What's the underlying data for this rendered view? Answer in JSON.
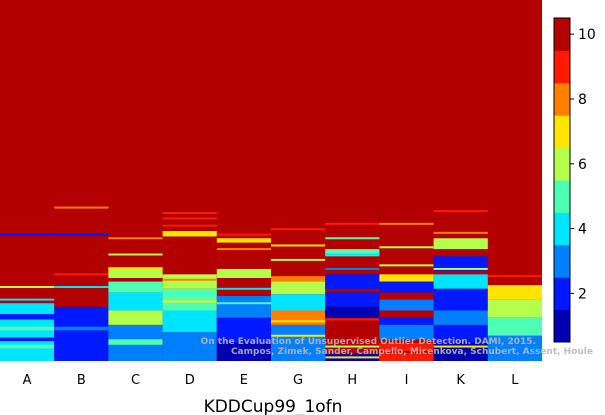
{
  "chart_data": {
    "type": "heatmap",
    "title": "",
    "xlabel": "KDDCup99_1ofn",
    "ylabel": "",
    "categories": [
      "A",
      "B",
      "C",
      "D",
      "E",
      "G",
      "H",
      "I",
      "K",
      "L"
    ],
    "colorbar": {
      "min": 0.5,
      "max": 10.5,
      "ticks": [
        2,
        4,
        6,
        8,
        10
      ],
      "colormap": "jet",
      "levels": 10
    },
    "background_value": 10.5,
    "notes_scale": "vertical position is a fraction (0 = top, 1 = bottom) of the plotted ranking",
    "columns": [
      {
        "name": "A",
        "bands": [
          {
            "y0": 0.84,
            "y1": 1.0,
            "v": 3.5
          },
          {
            "y0": 0.87,
            "y1": 0.885,
            "v": 2.0
          },
          {
            "y0": 0.905,
            "y1": 0.915,
            "v": 5.0
          },
          {
            "y0": 0.935,
            "y1": 0.945,
            "v": 1.5
          },
          {
            "y0": 0.955,
            "y1": 0.965,
            "v": 4.5
          }
        ],
        "lines": [
          {
            "y": 0.795,
            "v": 5.5
          },
          {
            "y": 0.83,
            "v": 4.0
          },
          {
            "y": 0.65,
            "v": 1.5
          }
        ]
      },
      {
        "name": "B",
        "bands": [
          {
            "y0": 0.85,
            "y1": 1.0,
            "v": 2.2
          },
          {
            "y0": 0.905,
            "y1": 0.915,
            "v": 2.8
          }
        ],
        "lines": [
          {
            "y": 0.575,
            "v": 8.0
          },
          {
            "y": 0.76,
            "v": 9.0
          },
          {
            "y": 0.795,
            "v": 4.0
          },
          {
            "y": 0.65,
            "v": 1.5
          }
        ]
      },
      {
        "name": "C",
        "bands": [
          {
            "y0": 0.74,
            "y1": 0.77,
            "v": 6.0
          },
          {
            "y0": 0.78,
            "y1": 0.81,
            "v": 4.5
          },
          {
            "y0": 0.81,
            "y1": 0.86,
            "v": 3.5
          },
          {
            "y0": 0.86,
            "y1": 0.9,
            "v": 5.5
          },
          {
            "y0": 0.9,
            "y1": 1.0,
            "v": 3.0
          },
          {
            "y0": 0.94,
            "y1": 0.955,
            "v": 4.5
          }
        ],
        "lines": [
          {
            "y": 0.66,
            "v": 8.0
          },
          {
            "y": 0.705,
            "v": 6.0
          },
          {
            "y": 0.745,
            "v": 7.0
          }
        ]
      },
      {
        "name": "D",
        "bands": [
          {
            "y0": 0.64,
            "y1": 0.655,
            "v": 7.2
          },
          {
            "y0": 0.76,
            "y1": 0.8,
            "v": 6.0
          },
          {
            "y0": 0.8,
            "y1": 0.86,
            "v": 5.0
          },
          {
            "y0": 0.86,
            "y1": 0.92,
            "v": 4.0
          },
          {
            "y0": 0.92,
            "y1": 1.0,
            "v": 3.0
          }
        ],
        "lines": [
          {
            "y": 0.59,
            "v": 8.5
          },
          {
            "y": 0.605,
            "v": 9.0
          },
          {
            "y": 0.625,
            "v": 9.0
          },
          {
            "y": 0.775,
            "v": 7.5
          },
          {
            "y": 0.835,
            "v": 6.5
          }
        ]
      },
      {
        "name": "E",
        "bands": [
          {
            "y0": 0.66,
            "y1": 0.672,
            "v": 7.0
          },
          {
            "y0": 0.745,
            "y1": 0.77,
            "v": 6.0
          },
          {
            "y0": 0.82,
            "y1": 0.88,
            "v": 2.5
          },
          {
            "y0": 0.88,
            "y1": 0.95,
            "v": 1.8
          },
          {
            "y0": 0.95,
            "y1": 1.0,
            "v": 1.0
          }
        ],
        "lines": [
          {
            "y": 0.65,
            "v": 8.5
          },
          {
            "y": 0.69,
            "v": 7.5
          },
          {
            "y": 0.8,
            "v": 4.0
          },
          {
            "y": 0.84,
            "v": 5.0
          }
        ]
      },
      {
        "name": "G",
        "bands": [
          {
            "y0": 0.765,
            "y1": 0.78,
            "v": 8.0
          },
          {
            "y0": 0.78,
            "y1": 0.815,
            "v": 5.5
          },
          {
            "y0": 0.815,
            "y1": 0.86,
            "v": 3.5
          },
          {
            "y0": 0.86,
            "y1": 0.9,
            "v": 8.2
          },
          {
            "y0": 0.9,
            "y1": 0.96,
            "v": 2.5
          },
          {
            "y0": 0.96,
            "y1": 1.0,
            "v": 3.2
          }
        ],
        "lines": [
          {
            "y": 0.635,
            "v": 8.5
          },
          {
            "y": 0.68,
            "v": 6.5
          },
          {
            "y": 0.72,
            "v": 5.5
          },
          {
            "y": 0.89,
            "v": 6.5
          },
          {
            "y": 0.93,
            "v": 7.0
          }
        ]
      },
      {
        "name": "H",
        "bands": [
          {
            "y0": 0.69,
            "y1": 0.71,
            "v": 4.5
          },
          {
            "y0": 0.76,
            "y1": 0.8,
            "v": 1.5
          },
          {
            "y0": 0.81,
            "y1": 0.85,
            "v": 2.0
          },
          {
            "y0": 0.85,
            "y1": 0.88,
            "v": 1.3
          },
          {
            "y0": 0.98,
            "y1": 1.0,
            "v": 1.0
          }
        ],
        "lines": [
          {
            "y": 0.62,
            "v": 8.5
          },
          {
            "y": 0.66,
            "v": 5.0
          },
          {
            "y": 0.705,
            "v": 3.5
          },
          {
            "y": 0.745,
            "v": 3.0
          },
          {
            "y": 0.885,
            "v": 9.0
          },
          {
            "y": 0.96,
            "v": 6.0
          },
          {
            "y": 0.99,
            "v": 7.0
          }
        ]
      },
      {
        "name": "I",
        "bands": [
          {
            "y0": 0.76,
            "y1": 0.78,
            "v": 6.5
          },
          {
            "y0": 0.78,
            "y1": 0.81,
            "v": 1.5
          },
          {
            "y0": 0.83,
            "y1": 0.86,
            "v": 3.0
          },
          {
            "y0": 0.88,
            "y1": 0.9,
            "v": 1.8
          },
          {
            "y0": 0.9,
            "y1": 0.94,
            "v": 3.2
          },
          {
            "y0": 0.95,
            "y1": 1.0,
            "v": 8.5
          }
        ],
        "lines": [
          {
            "y": 0.62,
            "v": 8.0
          },
          {
            "y": 0.685,
            "v": 6.0
          },
          {
            "y": 0.735,
            "v": 5.5
          },
          {
            "y": 0.975,
            "v": 9.5
          }
        ]
      },
      {
        "name": "K",
        "bands": [
          {
            "y0": 0.66,
            "y1": 0.69,
            "v": 6.0
          },
          {
            "y0": 0.71,
            "y1": 0.75,
            "v": 2.0
          },
          {
            "y0": 0.76,
            "y1": 0.8,
            "v": 3.5
          },
          {
            "y0": 0.8,
            "y1": 0.86,
            "v": 1.8
          },
          {
            "y0": 0.86,
            "y1": 0.9,
            "v": 3.0
          },
          {
            "y0": 0.9,
            "y1": 0.95,
            "v": 1.5
          },
          {
            "y0": 0.95,
            "y1": 1.0,
            "v": 1.2
          }
        ],
        "lines": [
          {
            "y": 0.585,
            "v": 9.0
          },
          {
            "y": 0.605,
            "v": 9.5
          },
          {
            "y": 0.645,
            "v": 7.5
          },
          {
            "y": 0.745,
            "v": 5.5
          },
          {
            "y": 0.96,
            "v": 7.0
          }
        ]
      },
      {
        "name": "L",
        "bands": [
          {
            "y0": 0.79,
            "y1": 0.83,
            "v": 7.0
          },
          {
            "y0": 0.83,
            "y1": 0.88,
            "v": 5.5
          },
          {
            "y0": 0.88,
            "y1": 0.93,
            "v": 4.5
          },
          {
            "y0": 0.93,
            "y1": 1.0,
            "v": 3.0
          }
        ],
        "lines": [
          {
            "y": 0.595,
            "v": 9.5
          },
          {
            "y": 0.7,
            "v": 9.5
          },
          {
            "y": 0.765,
            "v": 8.5
          },
          {
            "y": 0.87,
            "v": 6.0
          }
        ]
      }
    ],
    "watermark": [
      "On the Evaluation of Unsupervised Outlier Detection. DAMI, 2015.",
      "Campos, Zimek, Sander, Campello, Micenkova, Schubert, Assent, Houle"
    ]
  }
}
